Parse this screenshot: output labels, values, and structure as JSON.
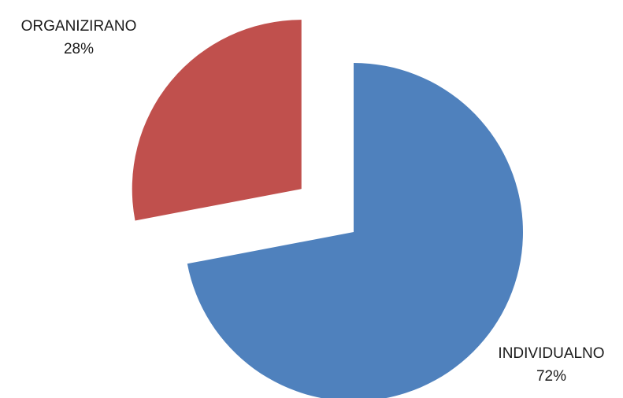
{
  "chart_data": {
    "type": "pie",
    "categories": [
      "INDIVIDUALNO",
      "ORGANIZIRANO"
    ],
    "values": [
      72,
      28
    ],
    "labels": [
      "72%",
      "28%"
    ],
    "colors": [
      "#4f81bd",
      "#c0504d"
    ],
    "exploded": [
      "ORGANIZIRANO"
    ]
  }
}
